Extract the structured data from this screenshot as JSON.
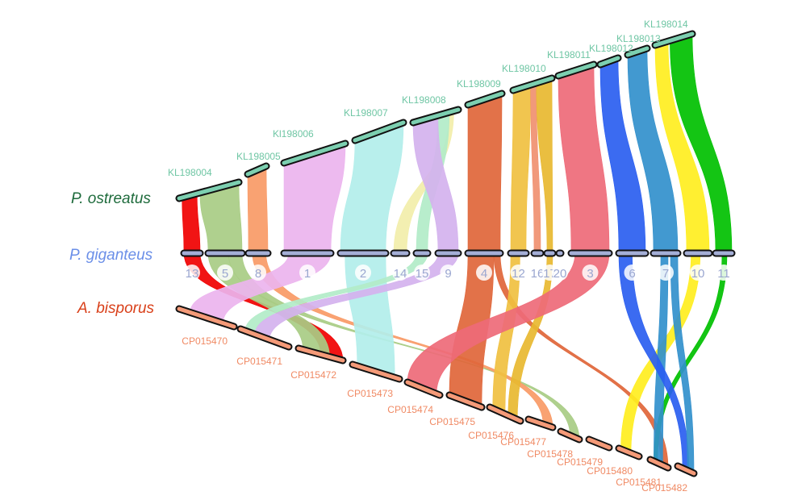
{
  "species": {
    "top": {
      "name": "P. ostreatus",
      "color": "#1e6b3c"
    },
    "middle": {
      "name": "P. giganteus",
      "color": "#6b8fe8"
    },
    "bottom": {
      "name": "A. bisporus",
      "color": "#d9401a"
    }
  },
  "top_chromosomes": [
    "KL198004",
    "KL198005",
    "Kl198006",
    "KL198007",
    "KL198008",
    "KL198009",
    "KL198010",
    "KL198011",
    "KL198012",
    "KL198013",
    "KL198014"
  ],
  "middle_chromosomes": [
    "13",
    "5",
    "8",
    "1",
    "2",
    "14",
    "15",
    "9",
    "4",
    "12",
    "16",
    "17",
    "20",
    "3",
    "6",
    "7",
    "10",
    "11"
  ],
  "bottom_chromosomes": [
    "CP015470",
    "CP015471",
    "CP015472",
    "CP015473",
    "CP015474",
    "CP015475",
    "CP015476",
    "CP015477",
    "CP015478",
    "CP015479",
    "CP015480",
    "CP015481",
    "CP015482"
  ],
  "bar_colors": {
    "top": "#7ccfb0",
    "middle": "#a4aed6",
    "bottom": "#f49a78"
  },
  "links_top_middle": [
    {
      "from": "KL198004",
      "to": "13",
      "color": "#f00000"
    },
    {
      "from": "KL198004",
      "to": "5",
      "color": "#a8cc84"
    },
    {
      "from": "KL198005",
      "to": "8",
      "color": "#f99a66"
    },
    {
      "from": "Kl198006",
      "to": "1",
      "color": "#ecb4ee"
    },
    {
      "from": "KL198007",
      "to": "2",
      "color": "#b2eeea"
    },
    {
      "from": "KL198008",
      "to": "14",
      "color": "#f2eeaa"
    },
    {
      "from": "KL198008",
      "to": "15",
      "color": "#b2ecc8"
    },
    {
      "from": "KL198008",
      "to": "9",
      "color": "#d4b2ee"
    },
    {
      "from": "KL198009",
      "to": "4",
      "color": "#e0663a"
    },
    {
      "from": "KL198010",
      "to": "12",
      "color": "#f0c040"
    },
    {
      "from": "KL198010",
      "to": "16",
      "color": "#f09070"
    },
    {
      "from": "KL198010",
      "to": "17",
      "color": "#e8b830"
    },
    {
      "from": "KL198011",
      "to": "3",
      "color": "#ee6a78"
    },
    {
      "from": "KL198012",
      "to": "6",
      "color": "#2a5ef0"
    },
    {
      "from": "KL198013",
      "to": "7",
      "color": "#3290cc"
    },
    {
      "from": "KL198014",
      "to": "10",
      "color": "#ffee20"
    },
    {
      "from": "KL198014",
      "to": "11",
      "color": "#00c000"
    }
  ],
  "links_middle_bottom": [
    {
      "from": "13",
      "to": "CP015472",
      "color": "#f00000"
    },
    {
      "from": "5",
      "to": "CP015472",
      "color": "#a8cc84"
    },
    {
      "from": "5",
      "to": "CP015478",
      "color": "#a8cc84"
    },
    {
      "from": "8",
      "to": "CP015477",
      "color": "#f99a66"
    },
    {
      "from": "1",
      "to": "CP015470",
      "color": "#ecb4ee"
    },
    {
      "from": "2",
      "to": "CP015473",
      "color": "#b2eeea"
    },
    {
      "from": "15",
      "to": "CP015471",
      "color": "#b2ecc8"
    },
    {
      "from": "9",
      "to": "CP015471",
      "color": "#d4b2ee"
    },
    {
      "from": "4",
      "to": "CP015475",
      "color": "#e0663a"
    },
    {
      "from": "4",
      "to": "CP015481",
      "color": "#e0663a"
    },
    {
      "from": "12",
      "to": "CP015476",
      "color": "#f0c040"
    },
    {
      "from": "17",
      "to": "CP015476",
      "color": "#e8b830"
    },
    {
      "from": "3",
      "to": "CP015474",
      "color": "#ee6a78"
    },
    {
      "from": "10",
      "to": "CP015480",
      "color": "#ffee20"
    },
    {
      "from": "11",
      "to": "CP015481",
      "color": "#00c000"
    },
    {
      "from": "7",
      "to": "CP015481",
      "color": "#3290cc"
    },
    {
      "from": "6",
      "to": "CP015482",
      "color": "#2a5ef0"
    },
    {
      "from": "7",
      "to": "CP015482",
      "color": "#3290cc"
    }
  ]
}
